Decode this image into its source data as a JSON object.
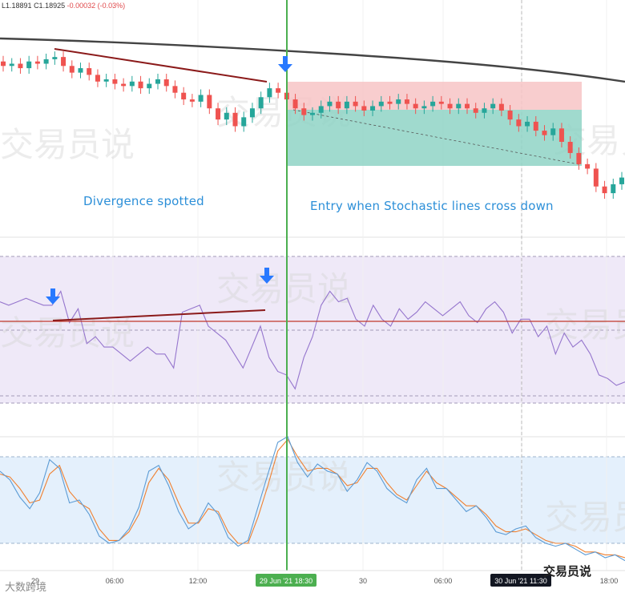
{
  "header": {
    "ohlc_partial": "L1.18891 C1.18925 -0.00032 (-0.03%)",
    "low_text": "L1.18891",
    "close_text": "C1.18925",
    "change_text": "-0.00032 (-0.03%)"
  },
  "annotations": {
    "divergence": "Divergence spotted",
    "entry": "Entry when Stochastic lines cross down"
  },
  "watermark": {
    "text": "交易员说",
    "bottom_left": "大数跨境",
    "bottom_right": "交易员说"
  },
  "colors": {
    "bull": "#26a69a",
    "bear": "#ef5350",
    "ma": "#444444",
    "trendline": "#8b1a1a",
    "entry_line": "#4caf50",
    "arrow": "#2979ff",
    "rsi": "#9575cd",
    "stoch_k": "#5b9bd5",
    "stoch_d": "#f08030",
    "label_text": "#2c8fd8"
  },
  "chart_data": [
    {
      "type": "candlestick",
      "title": "",
      "overlay": [
        "moving average",
        "divergence trendline",
        "short position box (stop / target)"
      ],
      "candles_close_series": [
        1.1912,
        1.1913,
        1.1911,
        1.1914,
        1.1913,
        1.1915,
        1.1916,
        1.1912,
        1.1909,
        1.1911,
        1.1908,
        1.1905,
        1.1906,
        1.1904,
        1.1903,
        1.1905,
        1.1902,
        1.1904,
        1.1906,
        1.1903,
        1.19,
        1.1897,
        1.1896,
        1.1899,
        1.1893,
        1.1888,
        1.1891,
        1.1885,
        1.1889,
        1.1893,
        1.1898,
        1.1902,
        1.19,
        1.1897,
        1.1893,
        1.189,
        1.1891,
        1.1894,
        1.1896,
        1.1893,
        1.1896,
        1.1894,
        1.1892,
        1.1894,
        1.1896,
        1.1895,
        1.1897,
        1.1895,
        1.1893,
        1.1894,
        1.1896,
        1.1895,
        1.1893,
        1.1895,
        1.1893,
        1.1891,
        1.1893,
        1.1895,
        1.1892,
        1.1888,
        1.1885,
        1.1887,
        1.1883,
        1.1881,
        1.1884,
        1.1878,
        1.1873,
        1.1868,
        1.1866,
        1.1858,
        1.1855,
        1.1859,
        1.1862
      ],
      "entry_label": "29 Jun '21  18:30",
      "cursor_label": "30 Jun '21  11:30"
    },
    {
      "type": "line",
      "title": "",
      "series": [
        {
          "values": [
            57,
            56,
            57,
            58,
            57,
            56,
            56,
            60,
            51,
            55,
            45,
            47,
            44,
            44,
            42,
            40,
            42,
            44,
            42,
            42,
            38,
            54,
            55,
            56,
            50,
            48,
            46,
            42,
            38,
            44,
            50,
            41,
            37,
            36,
            32,
            41,
            47,
            56,
            60,
            57,
            58,
            52,
            50,
            56,
            52,
            50,
            55,
            52,
            54,
            57,
            55,
            53,
            55,
            57,
            53,
            51,
            55,
            57,
            54,
            48,
            52,
            52,
            47,
            50,
            42,
            48,
            44,
            46,
            42,
            36,
            35,
            33,
            34
          ]
        }
      ],
      "levels": [
        70,
        50,
        30
      ]
    },
    {
      "type": "line",
      "title": "",
      "series": [
        {
          "values": [
            70,
            64,
            52,
            44,
            55,
            78,
            72,
            48,
            50,
            40,
            25,
            20,
            22,
            30,
            45,
            70,
            74,
            60,
            42,
            30,
            35,
            48,
            40,
            24,
            18,
            22,
            45,
            68,
            90,
            94,
            76,
            66,
            75,
            70,
            68,
            56,
            64,
            76,
            70,
            58,
            52,
            48,
            64,
            72,
            58,
            58,
            50,
            42,
            46,
            38,
            28,
            26,
            30,
            32,
            24,
            20,
            18,
            20,
            16,
            12,
            14,
            10,
            12,
            8
          ]
        },
        {
          "values": [
            68,
            66,
            58,
            48,
            50,
            68,
            74,
            56,
            48,
            44,
            30,
            22,
            22,
            28,
            40,
            62,
            72,
            64,
            48,
            34,
            34,
            44,
            42,
            28,
            20,
            20,
            38,
            60,
            84,
            92,
            80,
            70,
            72,
            72,
            68,
            60,
            62,
            72,
            72,
            62,
            54,
            50,
            60,
            70,
            62,
            58,
            52,
            46,
            46,
            40,
            32,
            28,
            28,
            30,
            26,
            22,
            20,
            20,
            18,
            14,
            14,
            12,
            12,
            10
          ]
        }
      ],
      "levels": [
        80,
        20
      ]
    }
  ],
  "axis": {
    "ticks": [
      "29",
      "06:00",
      "12:00",
      "29 Jun '21  18:30",
      "30",
      "06:00",
      "30 Jun '21  11:30",
      "18:00"
    ]
  }
}
